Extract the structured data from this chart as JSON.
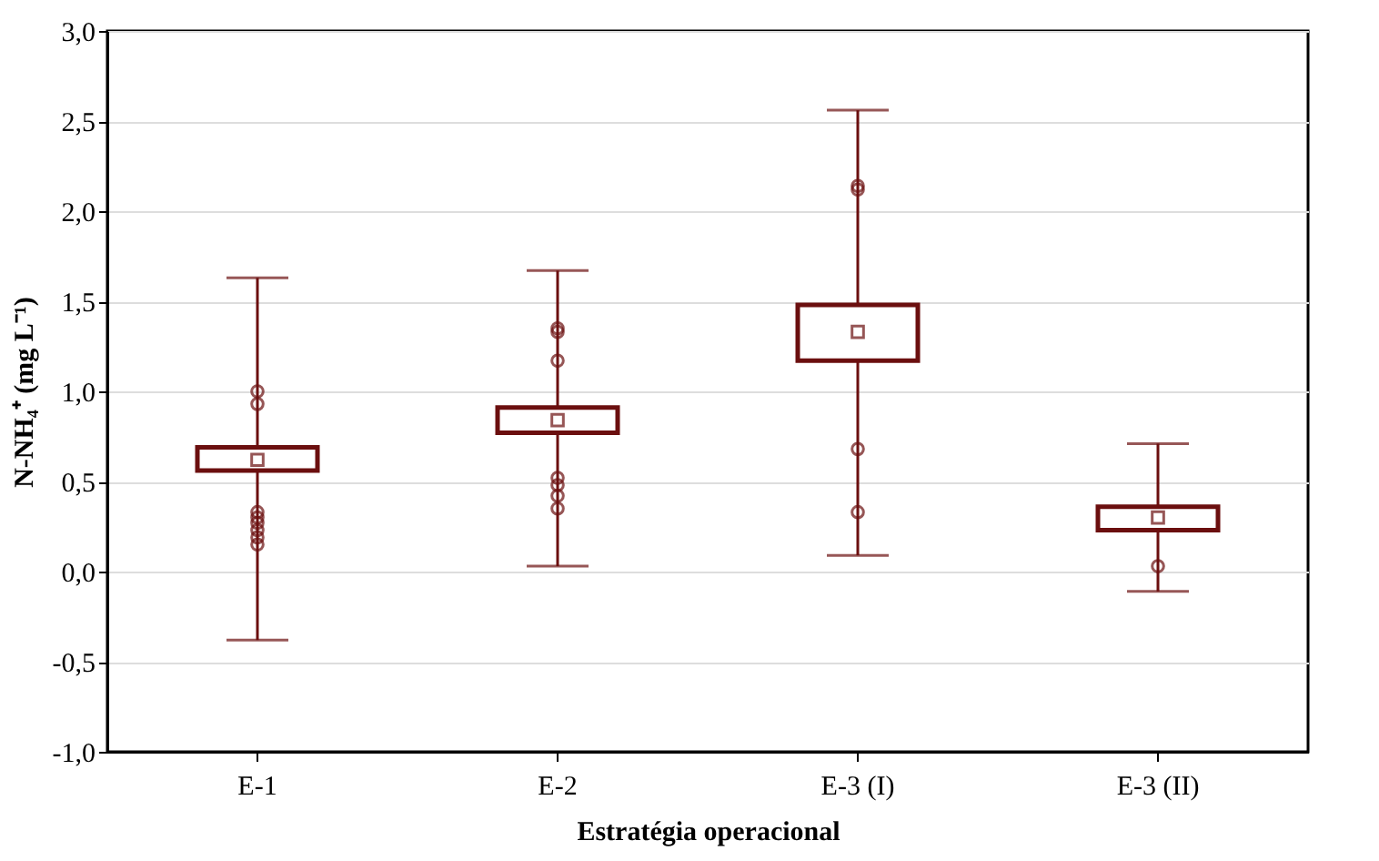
{
  "chart_data": {
    "type": "box",
    "xlabel": "Estratégia operacional",
    "ylabel": "N-NH₄⁺ (mg L⁻¹)",
    "categories": [
      "E-1",
      "E-2",
      "E-3 (I)",
      "E-3 (II)"
    ],
    "series": [
      {
        "color": "#6b0f0f",
        "boxes": [
          {
            "low": -0.38,
            "q1": 0.56,
            "median": 0.62,
            "q3": 0.69,
            "high": 1.63,
            "outliers": [
              1.0,
              0.93,
              0.33,
              0.3,
              0.27,
              0.23,
              0.19,
              0.15
            ]
          },
          {
            "low": 0.03,
            "q1": 0.77,
            "median": 0.84,
            "q3": 0.91,
            "high": 1.67,
            "outliers": [
              1.35,
              1.33,
              1.17,
              0.52,
              0.48,
              0.42,
              0.35
            ]
          },
          {
            "low": 0.09,
            "q1": 1.17,
            "median": 1.33,
            "q3": 1.48,
            "high": 2.56,
            "outliers": [
              2.14,
              2.12,
              0.68,
              0.33
            ]
          },
          {
            "low": -0.11,
            "q1": 0.23,
            "median": 0.3,
            "q3": 0.36,
            "high": 0.71,
            "outliers": [
              0.03
            ]
          }
        ]
      }
    ],
    "ylim": [
      -1.0,
      3.0
    ],
    "yticks": [
      {
        "value": -1.0,
        "label": "-1,0"
      },
      {
        "value": -0.5,
        "label": "-0,5"
      },
      {
        "value": 0.0,
        "label": "0,0"
      },
      {
        "value": 0.5,
        "label": "0,5"
      },
      {
        "value": 1.0,
        "label": "1,0"
      },
      {
        "value": 1.5,
        "label": "1,5"
      },
      {
        "value": 2.0,
        "label": "2,0"
      },
      {
        "value": 2.5,
        "label": "2,5"
      },
      {
        "value": 3.0,
        "label": "3,0"
      }
    ],
    "grid": "y",
    "marker": "circle"
  }
}
